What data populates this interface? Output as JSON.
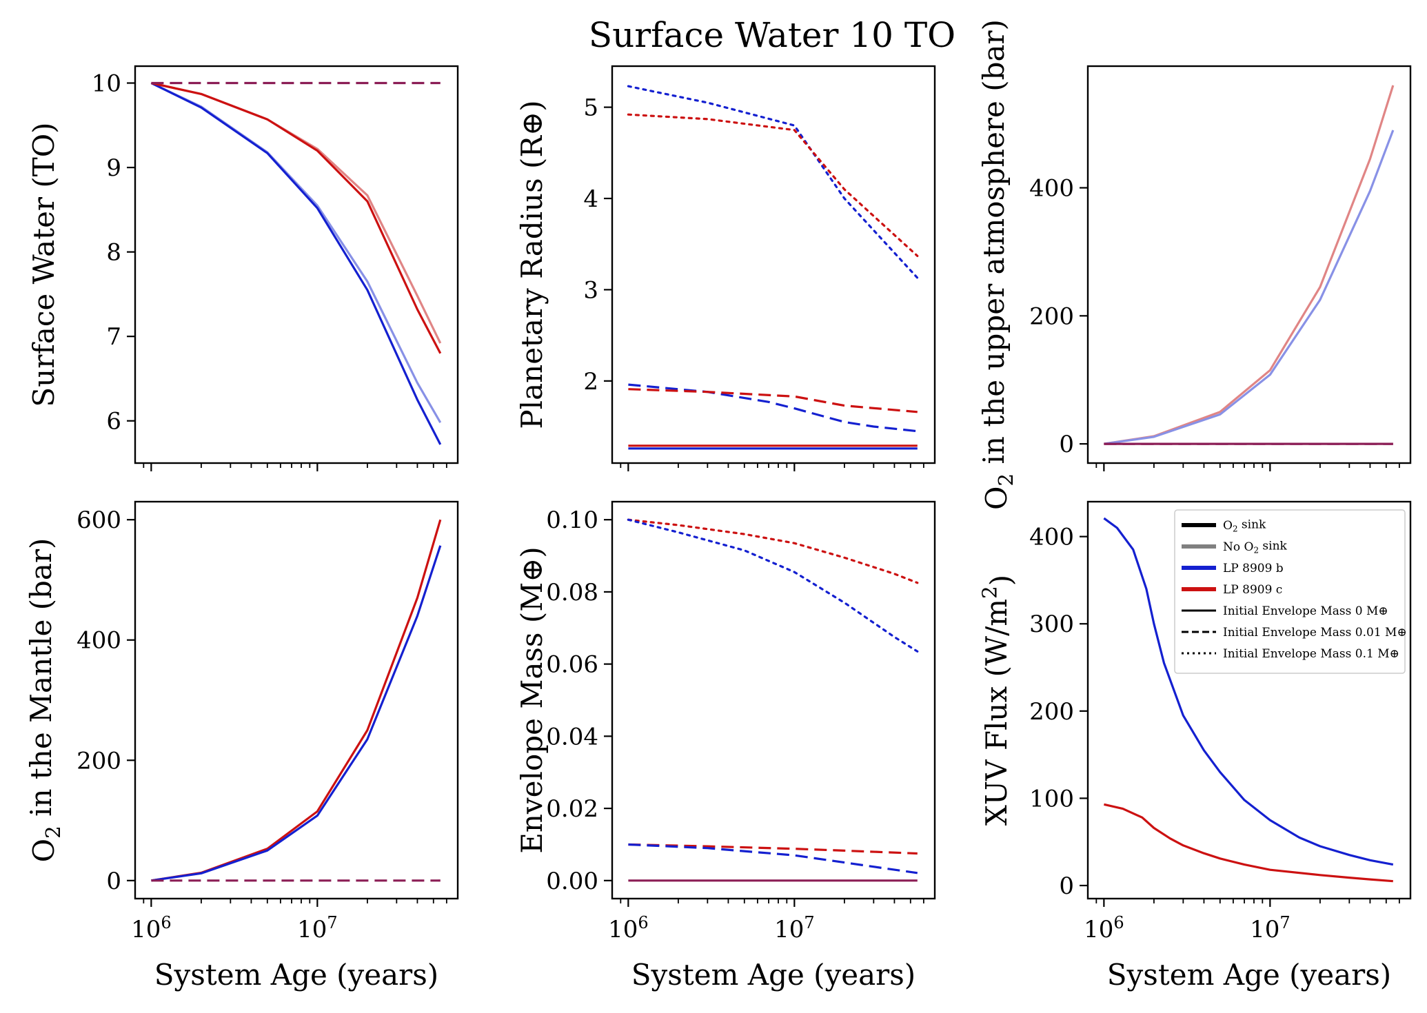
{
  "figure_title": "Surface Water 10 TO",
  "colors": {
    "lp8909b": "#1420d0",
    "lp8909c": "#cc1111",
    "lp8909b_nosink": "#8891e6",
    "lp8909c_nosink": "#e08585",
    "overlap": "#8b1d55",
    "sink": "#000000",
    "nosink": "#808080"
  },
  "legend": {
    "items": [
      {
        "label": "O₂ sink",
        "kind": "color",
        "color": "#000000"
      },
      {
        "label": "No O₂ sink",
        "kind": "color",
        "color": "#808080"
      },
      {
        "label": "LP 8909 b",
        "kind": "color",
        "color": "#1420d0"
      },
      {
        "label": "LP 8909 c",
        "kind": "color",
        "color": "#cc1111"
      },
      {
        "label": "Initial Envelope Mass 0 M⊕",
        "kind": "style",
        "dash": "solid"
      },
      {
        "label": "Initial Envelope Mass 0.01 M⊕",
        "kind": "style",
        "dash": "dashed"
      },
      {
        "label": "Initial Envelope Mass 0.1 M⊕",
        "kind": "style",
        "dash": "dotted"
      }
    ]
  },
  "chart_data": [
    {
      "type": "line",
      "id": "surface-water",
      "title": "",
      "xlabel": "",
      "ylabel": "Surface Water (TO)",
      "xscale": "log",
      "xlim": [
        800000,
        70000000
      ],
      "ylim": [
        5.5,
        10.2
      ],
      "xticks": [
        {
          "v": 1000000,
          "base": "10",
          "exp": "6"
        },
        {
          "v": 10000000,
          "base": "10",
          "exp": "7"
        }
      ],
      "show_xtick_labels": false,
      "yticks": [
        {
          "v": 6,
          "label": "6"
        },
        {
          "v": 7,
          "label": "7"
        },
        {
          "v": 8,
          "label": "8"
        },
        {
          "v": 9,
          "label": "9"
        },
        {
          "v": 10,
          "label": "10"
        }
      ],
      "series": [
        {
          "color": "#8891e6",
          "dash": "solid",
          "x": [
            1000000,
            2000000,
            5000000,
            10000000,
            20000000,
            40000000,
            55000000
          ],
          "y": [
            10.0,
            9.72,
            9.18,
            8.55,
            7.65,
            6.45,
            5.98
          ]
        },
        {
          "color": "#e08585",
          "dash": "solid",
          "x": [
            1000000,
            2000000,
            5000000,
            10000000,
            20000000,
            40000000,
            55000000
          ],
          "y": [
            10.0,
            9.87,
            9.57,
            9.22,
            8.67,
            7.48,
            6.92
          ]
        },
        {
          "color": "#1420d0",
          "dash": "solid",
          "x": [
            1000000,
            2000000,
            5000000,
            10000000,
            20000000,
            40000000,
            55000000
          ],
          "y": [
            10.0,
            9.71,
            9.17,
            8.52,
            7.55,
            6.25,
            5.72
          ]
        },
        {
          "color": "#cc1111",
          "dash": "solid",
          "x": [
            1000000,
            2000000,
            5000000,
            10000000,
            20000000,
            40000000,
            55000000
          ],
          "y": [
            10.0,
            9.87,
            9.57,
            9.2,
            8.6,
            7.32,
            6.8
          ]
        },
        {
          "color": "#8b1d55",
          "dash": "dashed",
          "x": [
            1000000,
            55000000
          ],
          "y": [
            10.0,
            10.0
          ]
        }
      ]
    },
    {
      "type": "line",
      "id": "planetary-radius",
      "title": "",
      "xlabel": "",
      "ylabel": "Planetary Radius (R⊕)",
      "xscale": "log",
      "xlim": [
        800000,
        70000000
      ],
      "ylim": [
        1.1,
        5.45
      ],
      "xticks": [
        {
          "v": 1000000,
          "base": "10",
          "exp": "6"
        },
        {
          "v": 10000000,
          "base": "10",
          "exp": "7"
        }
      ],
      "show_xtick_labels": false,
      "yticks": [
        {
          "v": 2,
          "label": "2"
        },
        {
          "v": 3,
          "label": "3"
        },
        {
          "v": 4,
          "label": "4"
        },
        {
          "v": 5,
          "label": "5"
        }
      ],
      "series": [
        {
          "color": "#1420d0",
          "dash": "dotted",
          "x": [
            1000000,
            3000000,
            10000000,
            20000000,
            55000000
          ],
          "y": [
            5.23,
            5.05,
            4.8,
            4.0,
            3.13
          ]
        },
        {
          "color": "#cc1111",
          "dash": "dotted",
          "x": [
            1000000,
            3000000,
            10000000,
            20000000,
            55000000
          ],
          "y": [
            4.92,
            4.87,
            4.75,
            4.1,
            3.37
          ]
        },
        {
          "color": "#1420d0",
          "dash": "dashed",
          "x": [
            1000000,
            3000000,
            7000000,
            10000000,
            20000000,
            30000000,
            55000000
          ],
          "y": [
            1.96,
            1.88,
            1.77,
            1.7,
            1.55,
            1.5,
            1.45
          ]
        },
        {
          "color": "#cc1111",
          "dash": "dashed",
          "x": [
            1000000,
            3000000,
            10000000,
            20000000,
            55000000
          ],
          "y": [
            1.91,
            1.88,
            1.83,
            1.73,
            1.66
          ]
        },
        {
          "color": "#cc1111",
          "dash": "solid",
          "x": [
            1000000,
            55000000
          ],
          "y": [
            1.29,
            1.29
          ]
        },
        {
          "color": "#1420d0",
          "dash": "solid",
          "x": [
            1000000,
            55000000
          ],
          "y": [
            1.26,
            1.26
          ]
        }
      ]
    },
    {
      "type": "line",
      "id": "o2-upper-atmosphere",
      "title": "",
      "xlabel": "",
      "ylabel": "O₂ in the upper atmosphere (bar)",
      "xscale": "log",
      "xlim": [
        800000,
        70000000
      ],
      "ylim": [
        -30,
        590
      ],
      "xticks": [
        {
          "v": 1000000,
          "base": "10",
          "exp": "6"
        },
        {
          "v": 10000000,
          "base": "10",
          "exp": "7"
        }
      ],
      "show_xtick_labels": false,
      "yticks": [
        {
          "v": 0,
          "label": "0"
        },
        {
          "v": 200,
          "label": "200"
        },
        {
          "v": 400,
          "label": "400"
        }
      ],
      "series": [
        {
          "color": "#e08585",
          "dash": "solid",
          "x": [
            1000000,
            2000000,
            5000000,
            10000000,
            20000000,
            40000000,
            55000000
          ],
          "y": [
            0,
            12,
            50,
            115,
            245,
            445,
            560
          ]
        },
        {
          "color": "#8891e6",
          "dash": "solid",
          "x": [
            1000000,
            2000000,
            5000000,
            10000000,
            20000000,
            40000000,
            55000000
          ],
          "y": [
            0,
            11,
            46,
            108,
            225,
            395,
            490
          ]
        },
        {
          "color": "#8b1d55",
          "dash": "solid",
          "x": [
            1000000,
            55000000
          ],
          "y": [
            0,
            0
          ]
        },
        {
          "color": "#8b1d55",
          "dash": "dashed",
          "x": [
            1000000,
            55000000
          ],
          "y": [
            0,
            0
          ]
        }
      ]
    },
    {
      "type": "line",
      "id": "o2-mantle",
      "title": "",
      "xlabel": "System Age (years)",
      "ylabel": "O₂ in the Mantle (bar)",
      "xscale": "log",
      "xlim": [
        800000,
        70000000
      ],
      "ylim": [
        -30,
        630
      ],
      "xticks": [
        {
          "v": 1000000,
          "base": "10",
          "exp": "6"
        },
        {
          "v": 10000000,
          "base": "10",
          "exp": "7"
        }
      ],
      "show_xtick_labels": true,
      "yticks": [
        {
          "v": 0,
          "label": "0"
        },
        {
          "v": 200,
          "label": "200"
        },
        {
          "v": 400,
          "label": "400"
        },
        {
          "v": 600,
          "label": "600"
        }
      ],
      "series": [
        {
          "color": "#cc1111",
          "dash": "solid",
          "x": [
            1000000,
            2000000,
            5000000,
            10000000,
            20000000,
            40000000,
            55000000
          ],
          "y": [
            0,
            13,
            53,
            115,
            250,
            470,
            600
          ]
        },
        {
          "color": "#1420d0",
          "dash": "solid",
          "x": [
            1000000,
            2000000,
            5000000,
            10000000,
            20000000,
            40000000,
            55000000
          ],
          "y": [
            0,
            12,
            50,
            108,
            235,
            440,
            557
          ]
        },
        {
          "color": "#8b1d55",
          "dash": "dashed",
          "x": [
            1000000,
            55000000
          ],
          "y": [
            0,
            0
          ]
        }
      ]
    },
    {
      "type": "line",
      "id": "envelope-mass",
      "title": "",
      "xlabel": "System Age (years)",
      "ylabel": "Envelope Mass (M⊕)",
      "xscale": "log",
      "xlim": [
        800000,
        70000000
      ],
      "ylim": [
        -0.005,
        0.105
      ],
      "xticks": [
        {
          "v": 1000000,
          "base": "10",
          "exp": "6"
        },
        {
          "v": 10000000,
          "base": "10",
          "exp": "7"
        }
      ],
      "show_xtick_labels": true,
      "yticks": [
        {
          "v": 0,
          "label": "0.00"
        },
        {
          "v": 0.02,
          "label": "0.02"
        },
        {
          "v": 0.04,
          "label": "0.04"
        },
        {
          "v": 0.06,
          "label": "0.06"
        },
        {
          "v": 0.08,
          "label": "0.08"
        },
        {
          "v": 0.1,
          "label": "0.10"
        }
      ],
      "series": [
        {
          "color": "#cc1111",
          "dash": "dotted",
          "x": [
            1000000,
            2000000,
            5000000,
            10000000,
            20000000,
            40000000,
            55000000
          ],
          "y": [
            0.1,
            0.0985,
            0.096,
            0.0935,
            0.0895,
            0.085,
            0.0825
          ]
        },
        {
          "color": "#1420d0",
          "dash": "dotted",
          "x": [
            1000000,
            2000000,
            5000000,
            10000000,
            20000000,
            40000000,
            55000000
          ],
          "y": [
            0.1,
            0.0965,
            0.0915,
            0.0855,
            0.077,
            0.0675,
            0.0635
          ]
        },
        {
          "color": "#cc1111",
          "dash": "dashed",
          "x": [
            1000000,
            3000000,
            10000000,
            20000000,
            55000000
          ],
          "y": [
            0.01,
            0.0095,
            0.0088,
            0.0083,
            0.0075
          ]
        },
        {
          "color": "#1420d0",
          "dash": "dashed",
          "x": [
            1000000,
            3000000,
            10000000,
            20000000,
            40000000,
            55000000
          ],
          "y": [
            0.01,
            0.009,
            0.007,
            0.005,
            0.003,
            0.0021
          ]
        },
        {
          "color": "#8b1d55",
          "dash": "solid",
          "x": [
            1000000,
            55000000
          ],
          "y": [
            0,
            0
          ]
        }
      ]
    },
    {
      "type": "line",
      "id": "xuv-flux",
      "title": "",
      "xlabel": "System Age (years)",
      "ylabel": "XUV Flux (W/m²)",
      "xscale": "log",
      "xlim": [
        800000,
        70000000
      ],
      "ylim": [
        -15,
        440
      ],
      "xticks": [
        {
          "v": 1000000,
          "base": "10",
          "exp": "6"
        },
        {
          "v": 10000000,
          "base": "10",
          "exp": "7"
        }
      ],
      "show_xtick_labels": true,
      "yticks": [
        {
          "v": 0,
          "label": "0"
        },
        {
          "v": 100,
          "label": "100"
        },
        {
          "v": 200,
          "label": "200"
        },
        {
          "v": 300,
          "label": "300"
        },
        {
          "v": 400,
          "label": "400"
        }
      ],
      "legend_position": "upper-right",
      "series": [
        {
          "color": "#1420d0",
          "dash": "solid",
          "x": [
            1000000,
            1200000,
            1500000,
            1800000,
            2000000,
            2300000,
            3000000,
            4000000,
            5000000,
            7000000,
            10000000,
            15000000,
            20000000,
            30000000,
            40000000,
            55000000
          ],
          "y": [
            421,
            410,
            385,
            340,
            300,
            255,
            195,
            155,
            130,
            98,
            75,
            55,
            45,
            35,
            29,
            24
          ]
        },
        {
          "color": "#cc1111",
          "dash": "solid",
          "x": [
            1000000,
            1300000,
            1700000,
            2000000,
            2500000,
            3000000,
            4000000,
            5000000,
            7000000,
            10000000,
            20000000,
            30000000,
            40000000,
            55000000
          ],
          "y": [
            93,
            88,
            78,
            66,
            54,
            46,
            37,
            31,
            24,
            18,
            12,
            9,
            7,
            5
          ]
        }
      ]
    }
  ]
}
